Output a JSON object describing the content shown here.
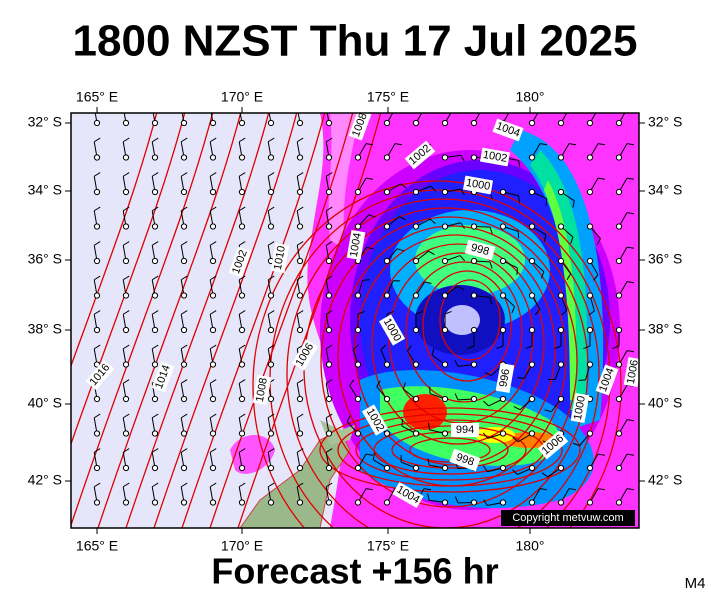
{
  "title": "1800 NZST Thu 17 Jul 2025",
  "map": {
    "lon_labels": [
      "165° E",
      "170° E",
      "175° E",
      "180°"
    ],
    "lat_labels": [
      "32° S",
      "34° S",
      "36° S",
      "38° S",
      "40° S",
      "42° S"
    ],
    "isobar_labels": [
      "1008",
      "1004",
      "1002",
      "1002",
      "1000",
      "1004",
      "998",
      "1002",
      "1010",
      "1000",
      "1006",
      "1016",
      "1014",
      "1008",
      "996",
      "1006",
      "1004",
      "1002",
      "994",
      "1000",
      "1006",
      "998",
      "1004"
    ],
    "copyright": "Copyright metvuw.com"
  },
  "footer": "Forecast +156 hr",
  "code": "M4"
}
